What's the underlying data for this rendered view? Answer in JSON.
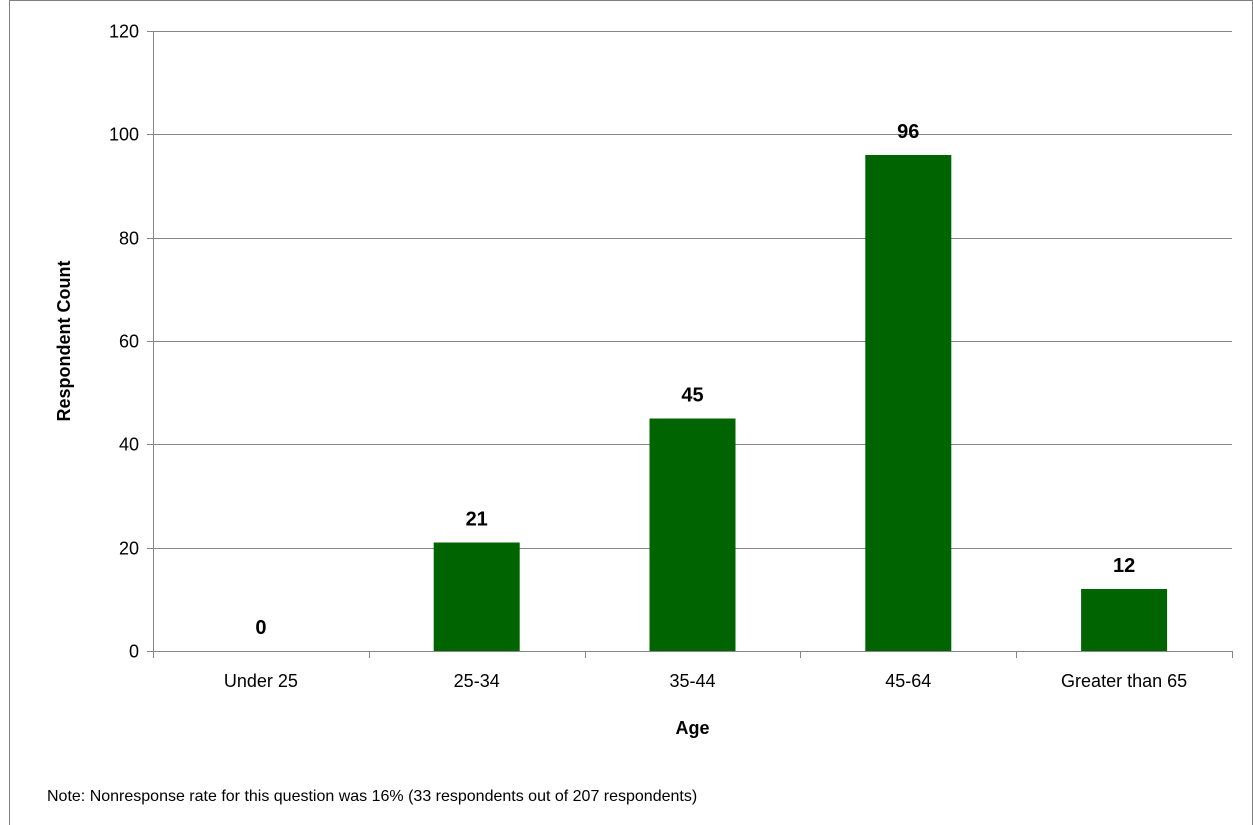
{
  "chart_data": {
    "type": "bar",
    "categories": [
      "Under 25",
      "25-34",
      "35-44",
      "45-64",
      "Greater than 65"
    ],
    "values": [
      0,
      21,
      45,
      96,
      12
    ],
    "data_labels": [
      "0",
      "21",
      "45",
      "96",
      "12"
    ],
    "xlabel": "Age",
    "ylabel": "Respondent Count",
    "ylim": [
      0,
      120
    ],
    "yticks": [
      0,
      20,
      40,
      60,
      80,
      100,
      120
    ],
    "ytick_labels": [
      "0",
      "20",
      "40",
      "60",
      "80",
      "100",
      "120"
    ],
    "grid": "horizontal",
    "legend": "none",
    "bar_color": "#006400"
  },
  "note": "Note: Nonresponse rate for this question was 16% (33 respondents out of 207 respondents)"
}
